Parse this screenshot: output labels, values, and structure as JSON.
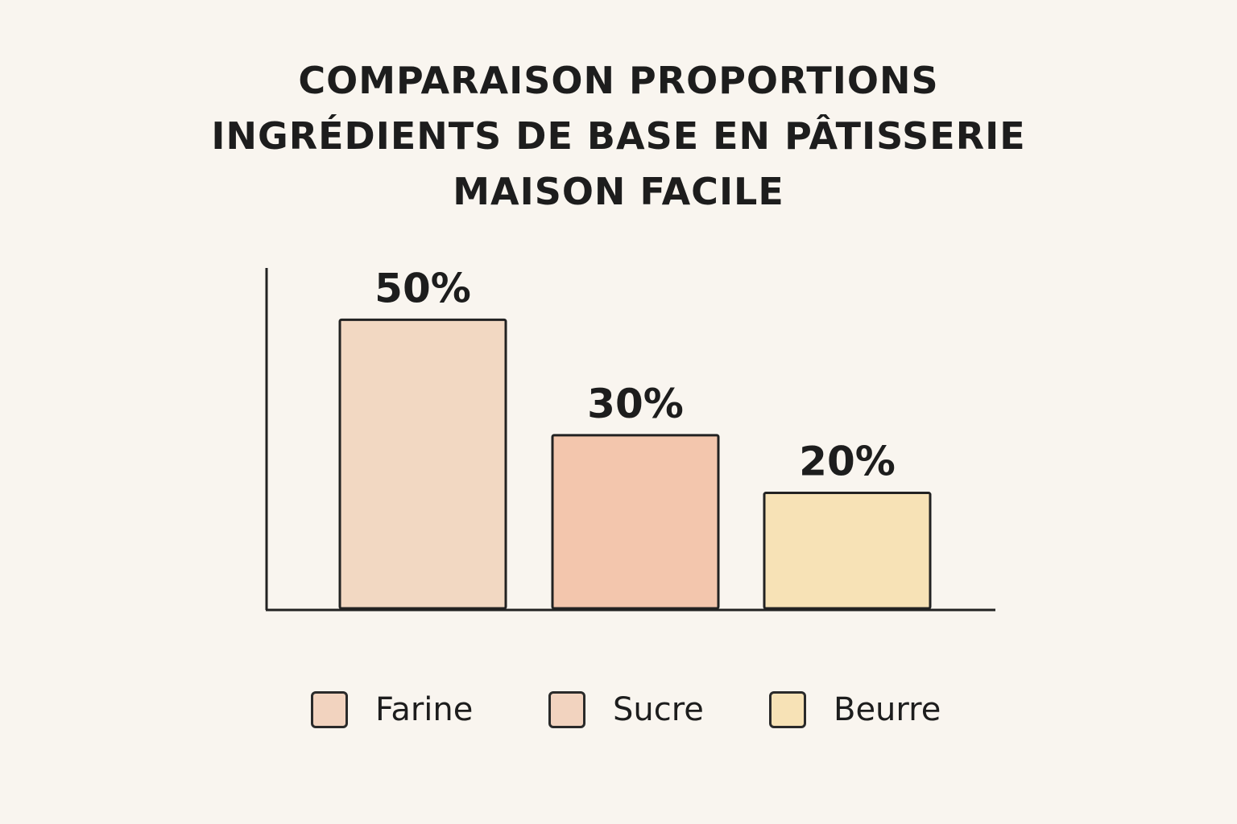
{
  "chart_data": {
    "type": "bar",
    "title_lines": [
      "COMPARAISON PROPORTIONS",
      "INGRÉDIENTS DE BASE EN PÂTISSERIE",
      "MAISON FACILE"
    ],
    "categories": [
      "Farine",
      "Sucre",
      "Beurre"
    ],
    "values": [
      50,
      30,
      20
    ],
    "value_labels": [
      "50%",
      "30%",
      "20%"
    ],
    "colors": [
      "#f2d8c2",
      "#f3c6ad",
      "#f7e2b6"
    ],
    "legend_colors": [
      "#f2d3bf",
      "#f2d3bf",
      "#f7e2b6"
    ],
    "ylim": [
      0,
      58
    ],
    "grid": false,
    "legend_position": "bottom",
    "legend": [
      "Farine",
      "Sucre",
      "Beurre"
    ]
  }
}
